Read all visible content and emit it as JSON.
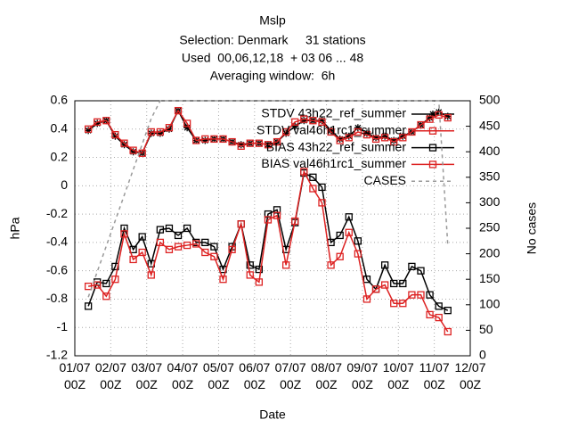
{
  "chart_data": {
    "type": "line",
    "title": "Mslp",
    "subtitle": [
      "Selection: Denmark     31 stations",
      "Used  00,06,12,18  + 03 06 ... 48",
      "Averaging window:  6h"
    ],
    "xlabel": "Date",
    "ylabel": "hPa",
    "y2label": "No cases",
    "x": [
      9,
      15,
      21,
      27,
      33,
      39,
      45,
      51,
      57,
      63,
      69,
      75,
      81,
      87,
      93,
      99,
      105,
      111,
      117,
      123,
      129,
      135,
      141,
      147,
      153,
      159,
      165,
      171,
      177,
      183,
      189,
      195,
      201,
      207,
      213,
      219,
      225,
      231,
      237,
      243,
      249
    ],
    "series": [
      {
        "name": "STDV 43h22_ref_summer",
        "color": "#000000",
        "marker": "star",
        "values": [
          0.39,
          0.44,
          0.46,
          0.35,
          0.29,
          0.24,
          0.23,
          0.37,
          0.37,
          0.4,
          0.53,
          0.41,
          0.32,
          0.32,
          0.33,
          0.33,
          0.31,
          0.29,
          0.3,
          0.3,
          0.29,
          0.31,
          0.37,
          0.42,
          0.46,
          0.46,
          0.46,
          0.39,
          0.33,
          0.35,
          0.41,
          0.37,
          0.34,
          0.35,
          0.32,
          0.35,
          0.38,
          0.43,
          0.48,
          0.52,
          0.49
        ]
      },
      {
        "name": "STDV val46h1rc1_summer",
        "color": "#dd2222",
        "marker": "square",
        "values": [
          0.4,
          0.45,
          0.46,
          0.36,
          0.3,
          0.25,
          0.23,
          0.38,
          0.38,
          0.41,
          0.53,
          0.44,
          0.32,
          0.33,
          0.33,
          0.33,
          0.31,
          0.28,
          0.3,
          0.3,
          0.29,
          0.31,
          0.38,
          0.45,
          0.47,
          0.46,
          0.45,
          0.38,
          0.32,
          0.34,
          0.38,
          0.36,
          0.33,
          0.34,
          0.31,
          0.34,
          0.38,
          0.43,
          0.47,
          0.5,
          0.48
        ]
      },
      {
        "name": "BIAS 43h22_ref_summer",
        "color": "#000000",
        "marker": "square",
        "values": [
          -0.85,
          -0.68,
          -0.69,
          -0.57,
          -0.3,
          -0.45,
          -0.36,
          -0.55,
          -0.31,
          -0.3,
          -0.35,
          -0.3,
          -0.4,
          -0.4,
          -0.43,
          -0.59,
          -0.43,
          -0.27,
          -0.56,
          -0.59,
          -0.2,
          -0.17,
          -0.45,
          -0.26,
          0.09,
          0.06,
          -0.01,
          -0.4,
          -0.35,
          -0.22,
          -0.39,
          -0.66,
          -0.73,
          -0.56,
          -0.69,
          -0.69,
          -0.57,
          -0.6,
          -0.77,
          -0.85,
          -0.88
        ]
      },
      {
        "name": "BIAS val46h1rc1_summer",
        "color": "#dd2222",
        "marker": "square",
        "values": [
          -0.71,
          -0.7,
          -0.78,
          -0.66,
          -0.34,
          -0.52,
          -0.47,
          -0.63,
          -0.4,
          -0.45,
          -0.43,
          -0.42,
          -0.41,
          -0.47,
          -0.5,
          -0.66,
          -0.45,
          -0.27,
          -0.63,
          -0.68,
          -0.24,
          -0.21,
          -0.56,
          -0.25,
          0.1,
          -0.02,
          -0.12,
          -0.56,
          -0.5,
          -0.33,
          -0.48,
          -0.8,
          -0.73,
          -0.7,
          -0.83,
          -0.83,
          -0.77,
          -0.77,
          -0.91,
          -0.93,
          -1.03
        ]
      },
      {
        "name": "CASES",
        "color": "#999999",
        "marker": "none",
        "dashed": true,
        "axis": "y2",
        "values": [
          115,
          165,
          215,
          265,
          315,
          365,
          415,
          465,
          500,
          500,
          500,
          500,
          500,
          500,
          500,
          500,
          500,
          500,
          500,
          500,
          500,
          500,
          500,
          500,
          500,
          500,
          500,
          500,
          500,
          500,
          500,
          500,
          500,
          500,
          500,
          500,
          500,
          500,
          500,
          500,
          217
        ]
      }
    ],
    "xlim": [
      0,
      264
    ],
    "xticks": [
      {
        "value": 0,
        "label": "01/07\n00Z"
      },
      {
        "value": 24,
        "label": "02/07\n00Z"
      },
      {
        "value": 48,
        "label": "03/07\n00Z"
      },
      {
        "value": 72,
        "label": "04/07\n00Z"
      },
      {
        "value": 96,
        "label": "05/07\n00Z"
      },
      {
        "value": 120,
        "label": "06/07\n00Z"
      },
      {
        "value": 144,
        "label": "07/07\n00Z"
      },
      {
        "value": 168,
        "label": "08/07\n00Z"
      },
      {
        "value": 192,
        "label": "09/07\n00Z"
      },
      {
        "value": 216,
        "label": "10/07\n00Z"
      },
      {
        "value": 240,
        "label": "11/07\n00Z"
      },
      {
        "value": 264,
        "label": "12/07\n00Z"
      }
    ],
    "ylim": [
      -1.2,
      0.6
    ],
    "yticks": [
      -1.2,
      -1,
      -0.8,
      -0.6,
      -0.4,
      -0.2,
      0,
      0.2,
      0.4,
      0.6
    ],
    "y2lim": [
      0,
      500
    ],
    "y2ticks": [
      0,
      50,
      100,
      150,
      200,
      250,
      300,
      350,
      400,
      450,
      500
    ],
    "grid": true,
    "legend": "top-right"
  }
}
